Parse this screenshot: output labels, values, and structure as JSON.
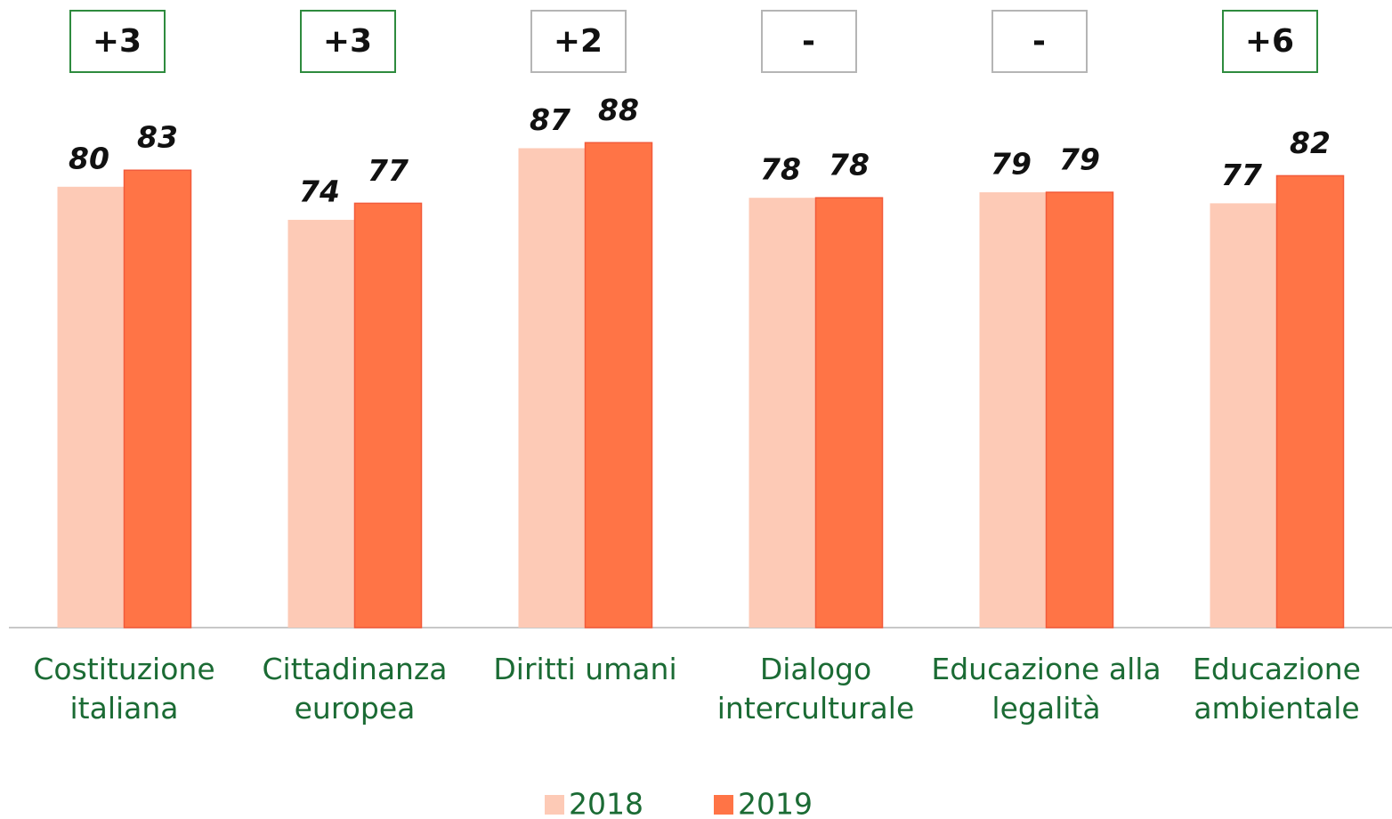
{
  "chart_data": {
    "type": "bar",
    "categories": [
      "Costituzione italiana",
      "Cittadinanza europea",
      "Diritti umani",
      "Dialogo interculturale",
      "Educazione alla legalità",
      "Educazione ambientale"
    ],
    "series": [
      {
        "name": "2018",
        "color": "#fdcab6",
        "values": [
          80,
          74,
          87,
          78,
          79,
          77
        ]
      },
      {
        "name": "2019",
        "color": "#ff7446",
        "values": [
          83,
          77,
          88,
          78,
          79,
          82
        ]
      }
    ],
    "annotations": [
      {
        "text": "+3",
        "color": "#2e8b3e"
      },
      {
        "text": "+3",
        "color": "#2e8b3e"
      },
      {
        "text": "+2",
        "color": "#b5b5b5"
      },
      {
        "text": "-",
        "color": "#b5b5b5"
      },
      {
        "text": "-",
        "color": "#b5b5b5"
      },
      {
        "text": "+6",
        "color": "#2e8b3e"
      }
    ],
    "ylim": [
      0,
      100
    ],
    "legend": "bottom"
  }
}
